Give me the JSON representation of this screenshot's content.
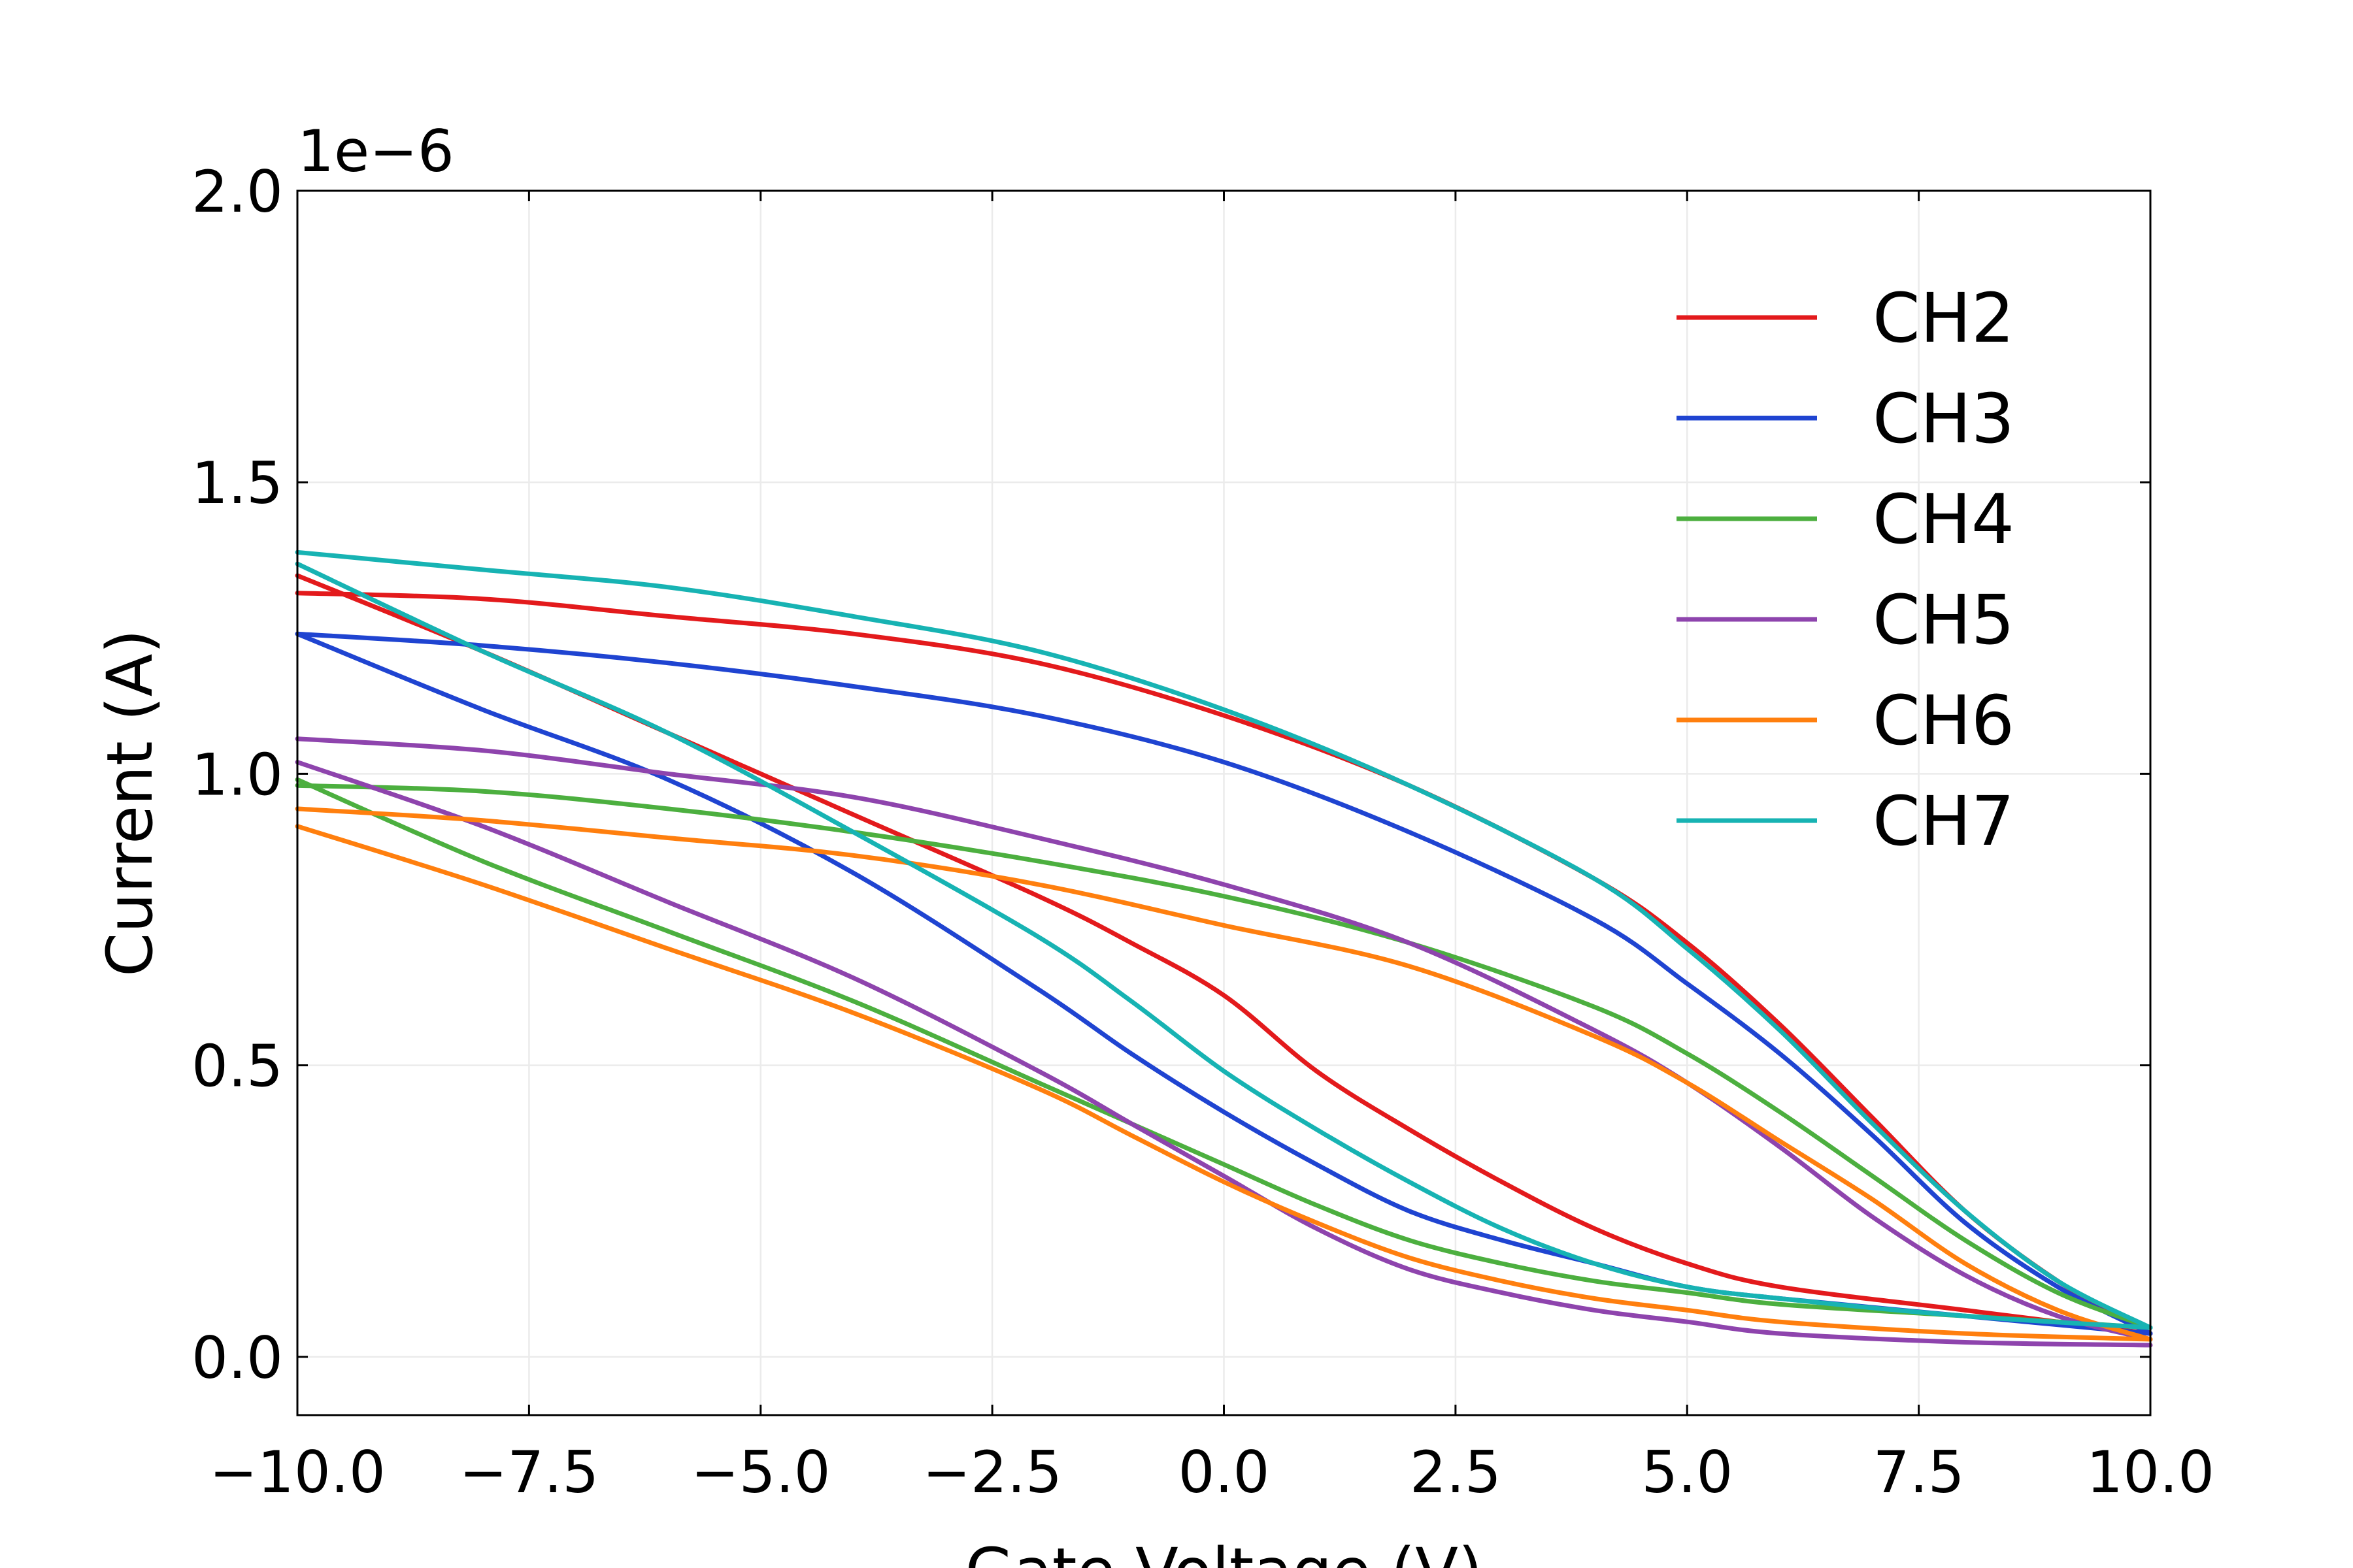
{
  "chart_data": {
    "type": "line",
    "title": "",
    "xlabel": "Gate Voltage (V)",
    "ylabel": "Current (A)",
    "y_offset_label": "1e−6",
    "xlim": [
      -10,
      10
    ],
    "ylim": [
      -0.1,
      2.0
    ],
    "x_ticks": [
      -10,
      -7.5,
      -5,
      -2.5,
      0,
      2.5,
      5,
      7.5,
      10
    ],
    "x_tick_labels": [
      "−10.0",
      "−7.5",
      "−5.0",
      "−2.5",
      "0.0",
      "2.5",
      "5.0",
      "7.5",
      "10.0"
    ],
    "y_ticks": [
      0,
      0.5,
      1.0,
      1.5,
      2.0
    ],
    "y_tick_labels": [
      "0.0",
      "0.5",
      "1.0",
      "1.5",
      "2.0"
    ],
    "grid": true,
    "legend_position": "top-right",
    "series": [
      {
        "name": "CH2",
        "color": "#e31a1c",
        "sweep_forward": {
          "x": [
            -10,
            -8,
            -6,
            -4,
            -2,
            0,
            2,
            4,
            5,
            6,
            7,
            8,
            9,
            10
          ],
          "y": [
            1.31,
            1.3,
            1.27,
            1.24,
            1.19,
            1.1,
            0.98,
            0.82,
            0.71,
            0.57,
            0.41,
            0.25,
            0.13,
            0.04
          ]
        },
        "sweep_reverse": {
          "x": [
            10,
            8,
            6,
            5,
            4,
            3,
            2,
            1,
            0,
            -1,
            -2,
            -4,
            -6,
            -8,
            -10
          ],
          "y": [
            0.04,
            0.08,
            0.12,
            0.16,
            0.22,
            0.3,
            0.39,
            0.49,
            0.62,
            0.71,
            0.79,
            0.93,
            1.07,
            1.21,
            1.34
          ]
        }
      },
      {
        "name": "CH3",
        "color": "#1f44d1",
        "sweep_forward": {
          "x": [
            -10,
            -8,
            -6,
            -4,
            -2,
            0,
            2,
            4,
            5,
            6,
            7,
            8,
            9,
            10
          ],
          "y": [
            1.24,
            1.22,
            1.19,
            1.15,
            1.1,
            1.02,
            0.9,
            0.75,
            0.64,
            0.52,
            0.38,
            0.23,
            0.12,
            0.04
          ]
        },
        "sweep_reverse": {
          "x": [
            10,
            8,
            6,
            5,
            4,
            3,
            2,
            1,
            0,
            -1,
            -2,
            -4,
            -6,
            -8,
            -10
          ],
          "y": [
            0.04,
            0.07,
            0.1,
            0.12,
            0.16,
            0.2,
            0.25,
            0.33,
            0.42,
            0.52,
            0.63,
            0.83,
            0.99,
            1.11,
            1.24
          ]
        }
      },
      {
        "name": "CH4",
        "color": "#4caf3f",
        "sweep_forward": {
          "x": [
            -10,
            -8,
            -6,
            -4,
            -2,
            0,
            2,
            4,
            5,
            6,
            7,
            8,
            9,
            10
          ],
          "y": [
            0.98,
            0.97,
            0.94,
            0.9,
            0.85,
            0.79,
            0.71,
            0.6,
            0.52,
            0.42,
            0.31,
            0.2,
            0.11,
            0.05
          ]
        },
        "sweep_reverse": {
          "x": [
            10,
            8,
            6,
            5,
            4,
            3,
            2,
            1,
            0,
            -1,
            -2,
            -4,
            -6,
            -8,
            -10
          ],
          "y": [
            0.05,
            0.07,
            0.09,
            0.11,
            0.13,
            0.16,
            0.2,
            0.26,
            0.33,
            0.4,
            0.47,
            0.61,
            0.73,
            0.85,
            0.99
          ]
        }
      },
      {
        "name": "CH5",
        "color": "#8e44ad",
        "sweep_forward": {
          "x": [
            -10,
            -8,
            -6,
            -4,
            -2,
            0,
            2,
            4,
            5,
            6,
            7,
            8,
            9,
            10
          ],
          "y": [
            1.06,
            1.04,
            1.0,
            0.96,
            0.89,
            0.81,
            0.71,
            0.56,
            0.47,
            0.36,
            0.24,
            0.14,
            0.07,
            0.03
          ]
        },
        "sweep_reverse": {
          "x": [
            10,
            8,
            6,
            5,
            4,
            3,
            2,
            1,
            0,
            -1,
            -2,
            -4,
            -6,
            -8,
            -10
          ],
          "y": [
            0.02,
            0.025,
            0.04,
            0.06,
            0.08,
            0.11,
            0.15,
            0.22,
            0.31,
            0.4,
            0.49,
            0.65,
            0.78,
            0.91,
            1.02
          ]
        }
      },
      {
        "name": "CH6",
        "color": "#ff7f0e",
        "sweep_forward": {
          "x": [
            -10,
            -8,
            -6,
            -4,
            -2,
            0,
            2,
            4,
            5,
            6,
            7,
            8,
            9,
            10
          ],
          "y": [
            0.94,
            0.92,
            0.89,
            0.86,
            0.81,
            0.74,
            0.67,
            0.55,
            0.47,
            0.37,
            0.27,
            0.16,
            0.08,
            0.03
          ]
        },
        "sweep_reverse": {
          "x": [
            10,
            8,
            6,
            5,
            4,
            3,
            2,
            1,
            0,
            -1,
            -2,
            -4,
            -6,
            -8,
            -10
          ],
          "y": [
            0.03,
            0.04,
            0.06,
            0.08,
            0.1,
            0.13,
            0.17,
            0.23,
            0.3,
            0.38,
            0.46,
            0.59,
            0.7,
            0.81,
            0.91
          ]
        }
      },
      {
        "name": "CH7",
        "color": "#17b3b3",
        "sweep_forward": {
          "x": [
            -10,
            -8,
            -6,
            -4,
            -2,
            0,
            2,
            4,
            5,
            6,
            7,
            8,
            9,
            10
          ],
          "y": [
            1.38,
            1.35,
            1.32,
            1.27,
            1.21,
            1.11,
            0.98,
            0.82,
            0.7,
            0.56,
            0.4,
            0.25,
            0.13,
            0.05
          ]
        },
        "sweep_reverse": {
          "x": [
            10,
            8,
            6,
            5,
            4,
            3,
            2,
            1,
            0,
            -1,
            -2,
            -4,
            -6,
            -8,
            -10
          ],
          "y": [
            0.05,
            0.07,
            0.1,
            0.12,
            0.16,
            0.22,
            0.3,
            0.39,
            0.49,
            0.61,
            0.72,
            0.9,
            1.07,
            1.21,
            1.36
          ]
        }
      }
    ]
  }
}
